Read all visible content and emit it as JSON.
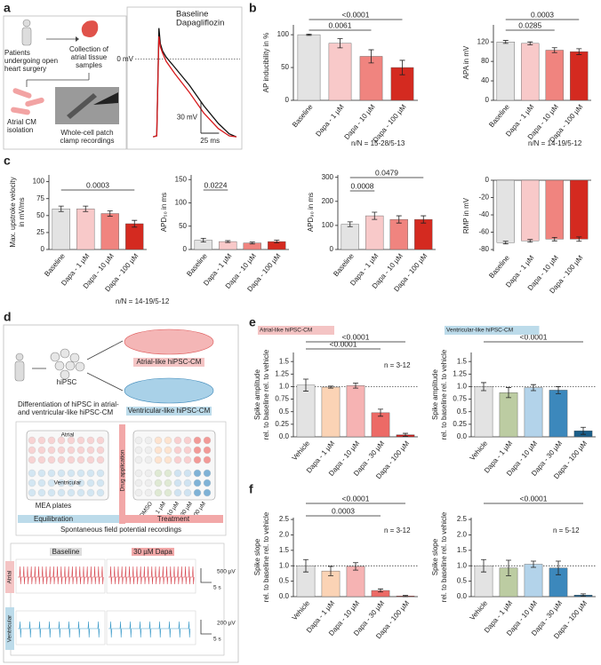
{
  "figure": {
    "panel_labels": [
      "a",
      "b",
      "c",
      "d",
      "e",
      "f"
    ]
  },
  "diagram_a": {
    "patients": [
      "Patients",
      "undergoing open",
      "heart surgery"
    ],
    "collection": [
      "Collection of",
      "atrial tissue",
      "samples"
    ],
    "isolation": [
      "Atrial CM",
      "isolation"
    ],
    "recording": [
      "Whole-cell patch",
      "clamp recordings"
    ]
  },
  "diagram_d": {
    "hipsc": "hiPSC",
    "atrial_cells": "Atrial-like hiPSC-CM",
    "ventricular_cells": "Ventricular-like hiPSC-CM",
    "differentiation": [
      "Differentiation of hiPSC in atrial-",
      "and ventricular-like hiPSC-CM"
    ],
    "plate_atrial": "Atrial",
    "plate_ventricular": "Ventricular",
    "mea": "MEA plates",
    "drug": "Drug application",
    "doses": [
      "DMSO",
      "1 µM",
      "10 µM",
      "30 µM",
      "100 µM"
    ],
    "equilibration": "Equilibration",
    "treatment": "Treatment",
    "recordings": "Spontaneous field potential recordings",
    "baseline": "Baseline",
    "dapa": "30 µM Dapa",
    "row_atrial": "Atrial",
    "row_ventricular": "Ventricular",
    "scale_atrial": [
      "500 µV",
      "5 s"
    ],
    "scale_ventricular": [
      "200 µV",
      "5 s"
    ]
  },
  "chart_data": [
    {
      "type": "line",
      "x": [
        0,
        5,
        8,
        10,
        13,
        18,
        30,
        50,
        70,
        90,
        105,
        115
      ],
      "xlim": [
        -15,
        120
      ],
      "ylim": [
        -80,
        40
      ],
      "series": [
        {
          "name": "Baseline",
          "color": "#111111",
          "values": [
            -75,
            -74,
            30,
            15,
            8,
            2,
            -8,
            -25,
            -45,
            -62,
            -72,
            -75
          ]
        },
        {
          "name": "Dapagliflozin",
          "color": "#d7191c",
          "values": [
            -75,
            -74,
            22,
            12,
            6,
            -2,
            -14,
            -32,
            -52,
            -67,
            -74,
            -75
          ]
        }
      ],
      "reference_line": {
        "value": 0,
        "label": "0 mV"
      },
      "scale_bars": [
        {
          "value": 30,
          "label": "30 mV"
        },
        {
          "value": 25,
          "label": "25 ms"
        }
      ]
    },
    {
      "type": "bar",
      "ylabel": [
        "AP inducibility in %"
      ],
      "categories": [
        "Baseline",
        "Dapa - 1 µM",
        "Dapa - 10 µM",
        "Dapa - 100 µM"
      ],
      "values": [
        100,
        87,
        67,
        50
      ],
      "errors": [
        1,
        7,
        10,
        11
      ],
      "colors": [
        "#e3e3e3",
        "#f8c9c9",
        "#f0847f",
        "#d42a20"
      ],
      "ylim": [
        0,
        115
      ],
      "yticks": [
        0,
        50,
        100
      ],
      "comparisons": [
        {
          "label": "<0.0001",
          "groups": [
            "Baseline",
            "Dapa - 100 µM"
          ]
        },
        {
          "label": "0.0061",
          "groups": [
            "Baseline",
            "Dapa - 10 µM"
          ]
        }
      ],
      "note": "n/N = 15-28/5-13"
    },
    {
      "type": "bar",
      "ylabel": [
        "APA in mV"
      ],
      "categories": [
        "Baseline",
        "Dapa - 1 µM",
        "Dapa - 10 µM",
        "Dapa - 100 µM"
      ],
      "values": [
        120,
        117,
        103,
        100
      ],
      "errors": [
        3,
        3,
        5,
        6
      ],
      "colors": [
        "#e3e3e3",
        "#f8c9c9",
        "#f0847f",
        "#d42a20"
      ],
      "ylim": [
        0,
        155
      ],
      "yticks": [
        0,
        40,
        80,
        120
      ],
      "comparisons": [
        {
          "label": "0.0003",
          "groups": [
            "Baseline",
            "Dapa - 100 µM"
          ]
        },
        {
          "label": "0.0285",
          "groups": [
            "Baseline",
            "Dapa - 10 µM"
          ]
        }
      ],
      "note": "n/N = 14-19/5-12"
    },
    {
      "type": "bar",
      "ylabel": [
        "Max. upstroke velocity",
        "in mV/ms"
      ],
      "categories": [
        "Baseline",
        "Dapa - 1 µM",
        "Dapa - 10 µM",
        "Dapa - 100 µM"
      ],
      "values": [
        60,
        60,
        53,
        38
      ],
      "errors": [
        4,
        4,
        4,
        5
      ],
      "colors": [
        "#e3e3e3",
        "#f8c9c9",
        "#f0847f",
        "#d42a20"
      ],
      "ylim": [
        0,
        110
      ],
      "yticks": [
        0,
        25,
        50,
        75,
        100
      ],
      "comparisons": [
        {
          "label": "0.0003",
          "groups": [
            "Baseline",
            "Dapa - 100 µM"
          ]
        }
      ],
      "note": "n/N = 14-19/5-12"
    },
    {
      "type": "bar",
      "ylabel": [
        "APD₅₀ in ms"
      ],
      "categories": [
        "Baseline",
        "Dapa - 1 µM",
        "Dapa - 10 µM",
        "Dapa - 100 µM"
      ],
      "values": [
        20,
        17,
        14,
        17
      ],
      "errors": [
        4,
        2,
        2,
        3
      ],
      "colors": [
        "#e3e3e3",
        "#f8c9c9",
        "#f0847f",
        "#d42a20"
      ],
      "ylim": [
        0,
        160
      ],
      "yticks": [
        0,
        50,
        100,
        150
      ],
      "comparisons": [
        {
          "label": "0.0224",
          "groups": [
            "Baseline",
            "Dapa - 1 µM"
          ]
        }
      ]
    },
    {
      "type": "bar",
      "ylabel": [
        "APD₉₀ in ms"
      ],
      "categories": [
        "Baseline",
        "Dapa - 1 µM",
        "Dapa - 10 µM",
        "Dapa - 100 µM"
      ],
      "values": [
        105,
        140,
        125,
        125
      ],
      "errors": [
        10,
        15,
        15,
        15
      ],
      "colors": [
        "#e3e3e3",
        "#f8c9c9",
        "#f0847f",
        "#d42a20"
      ],
      "ylim": [
        0,
        310
      ],
      "yticks": [
        0,
        100,
        200,
        300
      ],
      "comparisons": [
        {
          "label": "0.0479",
          "groups": [
            "Baseline",
            "Dapa - 100 µM"
          ]
        },
        {
          "label": "0.0008",
          "groups": [
            "Baseline",
            "Dapa - 1 µM"
          ]
        }
      ]
    },
    {
      "type": "bar",
      "ylabel": [
        "RMP in mV"
      ],
      "categories": [
        "Baseline",
        "Dapa - 1 µM",
        "Dapa - 10 µM",
        "Dapa - 100 µM"
      ],
      "values": [
        -72,
        -70,
        -68,
        -68
      ],
      "errors": [
        1.5,
        1.5,
        2,
        2.5
      ],
      "colors": [
        "#e3e3e3",
        "#f8c9c9",
        "#f0847f",
        "#d42a20"
      ],
      "ylim": [
        -82,
        0
      ],
      "yticks": [
        -80,
        -60,
        -40,
        -20,
        0
      ]
    },
    {
      "type": "bar",
      "subtitle": "Atrial-like hiPSC-CM",
      "subtitle_color": "#f4c4c4",
      "ylabel": [
        "Spike amplitude",
        "rel. to baseline rel. to vehicle"
      ],
      "categories": [
        "Vehicle",
        "Dapa - 1 µM",
        "Dapa - 10 µM",
        "Dapa - 30 µM",
        "Dapa - 100 µM"
      ],
      "values": [
        1.03,
        0.99,
        1.02,
        0.48,
        0.04
      ],
      "errors": [
        0.12,
        0.02,
        0.05,
        0.07,
        0.03
      ],
      "colors": [
        "#e3e3e3",
        "#fbd3b5",
        "#f6b3b3",
        "#ec6a66",
        "#c42320"
      ],
      "ylim": [
        0,
        1.68
      ],
      "yticks": [
        {
          "value": 0,
          "label": "0.0"
        },
        0.25,
        {
          "value": 0.5,
          "label": "0.5"
        },
        0.75,
        {
          "value": 1,
          "label": "1.0"
        },
        1.25,
        1.5
      ],
      "reference_line": 1,
      "comparisons": [
        {
          "label": "<0.0001",
          "groups": [
            "Vehicle",
            "Dapa - 100 µM"
          ]
        },
        {
          "label": "<0.0001",
          "groups": [
            "Vehicle",
            "Dapa - 30 µM"
          ]
        }
      ],
      "note": "n = 3-12"
    },
    {
      "type": "bar",
      "subtitle": "Ventricular-like hiPSC-CM",
      "subtitle_color": "#bcdbea",
      "ylabel": [
        "Spike amplitude",
        "rel. to baseline rel. to vehicle"
      ],
      "categories": [
        "Vehicle",
        "Dapa - 1 µM",
        "Dapa - 10 µM",
        "Dapa - 30 µM",
        "Dapa - 100 µM"
      ],
      "values": [
        1.0,
        0.88,
        0.98,
        0.93,
        0.12
      ],
      "errors": [
        0.08,
        0.1,
        0.06,
        0.07,
        0.07
      ],
      "colors": [
        "#e3e3e3",
        "#bccca2",
        "#b3d3ea",
        "#3c88bc",
        "#1a5e89"
      ],
      "ylim": [
        0,
        1.68
      ],
      "yticks": [
        {
          "value": 0,
          "label": "0.0"
        },
        0.25,
        {
          "value": 0.5,
          "label": "0.5"
        },
        0.75,
        {
          "value": 1,
          "label": "1.0"
        },
        1.25,
        1.5
      ],
      "reference_line": 1,
      "comparisons": [
        {
          "label": "<0.0001",
          "groups": [
            "Vehicle",
            "Dapa - 100 µM"
          ]
        }
      ]
    },
    {
      "type": "bar",
      "ylabel": [
        "Spike slope",
        "rel. to baseline rel. to vehicle"
      ],
      "categories": [
        "Vehicle",
        "Dapa - 1 µM",
        "Dapa - 10 µM",
        "Dapa - 30 µM",
        "Dapa - 100 µM"
      ],
      "values": [
        1.0,
        0.83,
        0.98,
        0.2,
        0.02
      ],
      "errors": [
        0.2,
        0.15,
        0.12,
        0.05,
        0.02
      ],
      "colors": [
        "#e3e3e3",
        "#fbd3b5",
        "#f6b3b3",
        "#ec6a66",
        "#c42320"
      ],
      "ylim": [
        0,
        2.56
      ],
      "yticks": [
        {
          "value": 0,
          "label": "0.0"
        },
        0.5,
        {
          "value": 1,
          "label": "1.0"
        },
        1.5,
        {
          "value": 2,
          "label": "2.0"
        },
        2.5
      ],
      "reference_line": 1,
      "comparisons": [
        {
          "label": "<0.0001",
          "groups": [
            "Vehicle",
            "Dapa - 100 µM"
          ]
        },
        {
          "label": "0.0003",
          "groups": [
            "Vehicle",
            "Dapa - 30 µM"
          ]
        }
      ],
      "note": "n = 3-12"
    },
    {
      "type": "bar",
      "ylabel": [
        "Spike slope",
        "rel. to baseline rel. to vehicle"
      ],
      "categories": [
        "Vehicle",
        "Dapa - 1 µM",
        "Dapa - 10 µM",
        "Dapa - 30 µM",
        "Dapa - 100 µM"
      ],
      "values": [
        1.0,
        0.93,
        1.05,
        0.93,
        0.05
      ],
      "errors": [
        0.2,
        0.25,
        0.1,
        0.22,
        0.04
      ],
      "colors": [
        "#e3e3e3",
        "#bccca2",
        "#b3d3ea",
        "#3c88bc",
        "#1a5e89"
      ],
      "ylim": [
        0,
        2.56
      ],
      "yticks": [
        {
          "value": 0,
          "label": "0.0"
        },
        0.5,
        {
          "value": 1,
          "label": "1.0"
        },
        1.5,
        {
          "value": 2,
          "label": "2.0"
        },
        2.5
      ],
      "reference_line": 1,
      "comparisons": [
        {
          "label": "<0.0001",
          "groups": [
            "Vehicle",
            "Dapa - 100 µM"
          ]
        }
      ],
      "note": "n = 5-12"
    }
  ]
}
